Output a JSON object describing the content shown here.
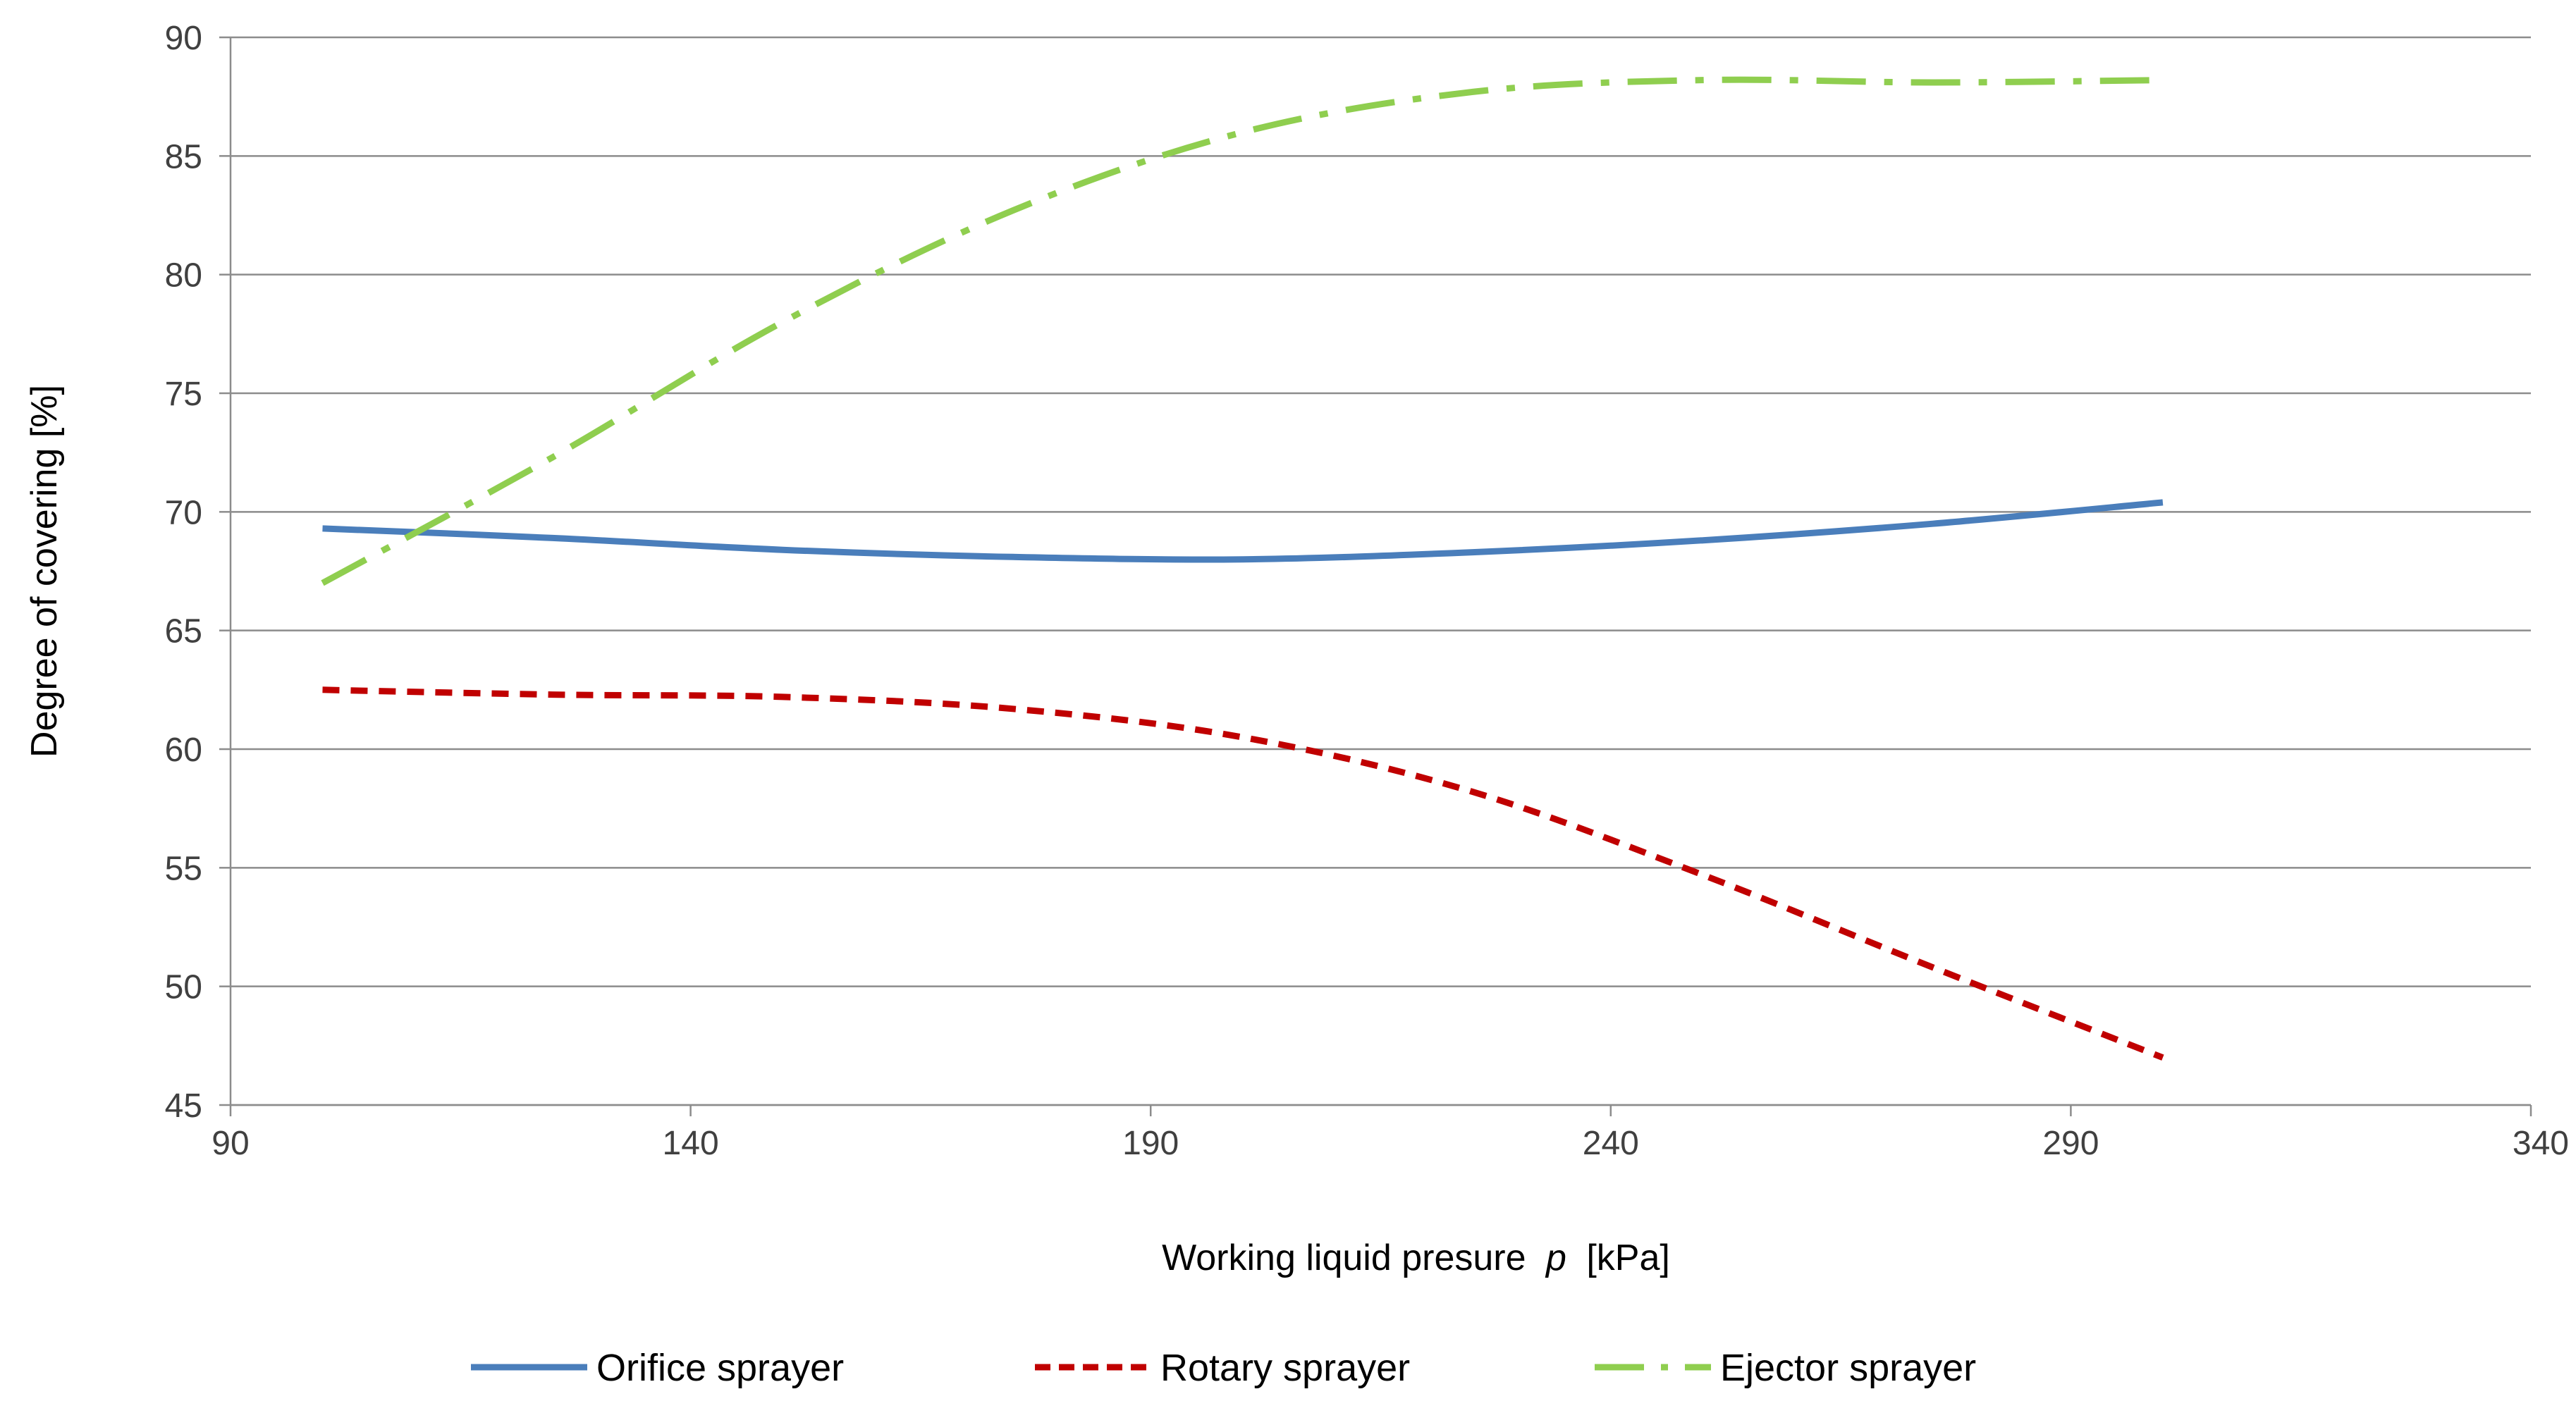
{
  "chart_data": {
    "type": "line",
    "title": "",
    "xlabel": "Working liquid presure",
    "xlabel_symbol": "p",
    "xlabel_unit": "[kPa]",
    "ylabel": "Degree of covering [%]",
    "xlim": [
      90,
      340
    ],
    "ylim": [
      45,
      90
    ],
    "xticks": [
      90,
      140,
      190,
      240,
      290,
      340
    ],
    "yticks": [
      45,
      50,
      55,
      60,
      65,
      70,
      75,
      80,
      85,
      90
    ],
    "grid": "horizontal",
    "legend_position": "bottom",
    "series": [
      {
        "name": "Orifice sprayer",
        "color": "#4A7EBB",
        "style": "solid",
        "x": [
          100,
          125,
          150,
          175,
          200,
          225,
          250,
          275,
          300
        ],
        "y": [
          69.3,
          68.9,
          68.4,
          68.1,
          68.0,
          68.3,
          68.8,
          69.5,
          70.4
        ]
      },
      {
        "name": "Rotary sprayer",
        "color": "#C00000",
        "style": "dash",
        "x": [
          100,
          125,
          150,
          175,
          200,
          225,
          250,
          275,
          300
        ],
        "y": [
          62.5,
          62.3,
          62.2,
          61.7,
          60.5,
          58.2,
          54.7,
          50.8,
          47.0
        ]
      },
      {
        "name": "Ejector sprayer",
        "color": "#8FCE4F",
        "style": "dashdot",
        "x": [
          100,
          125,
          150,
          175,
          200,
          225,
          250,
          275,
          300
        ],
        "y": [
          67.0,
          72.3,
          78.0,
          82.7,
          86.0,
          87.7,
          88.2,
          88.1,
          88.2
        ]
      }
    ]
  }
}
